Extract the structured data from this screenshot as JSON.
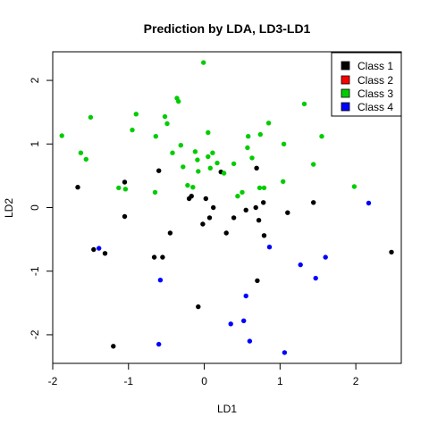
{
  "chart_data": {
    "type": "scatter",
    "title": "Prediction by LDA, LD3-LD1",
    "xlabel": "LD1",
    "ylabel": "LD2",
    "xlim": [
      -2.0,
      2.6
    ],
    "ylim": [
      -2.45,
      2.45
    ],
    "xticks": [
      -2,
      -1,
      0,
      1,
      2
    ],
    "yticks": [
      -2,
      -1,
      0,
      1,
      2
    ],
    "xtick_labels": [
      "-2",
      "-1",
      "0",
      "1",
      "2"
    ],
    "ytick_labels": [
      "-2",
      "-1",
      "0",
      "1",
      "2"
    ],
    "grid": false,
    "legend_position": "top-right",
    "series": [
      {
        "name": "Class 1",
        "color": "#000000",
        "points": [
          [
            -1.67,
            0.32
          ],
          [
            -1.05,
            0.4
          ],
          [
            -1.05,
            -0.14
          ],
          [
            -1.46,
            -0.66
          ],
          [
            -1.31,
            -0.72
          ],
          [
            -0.6,
            0.58
          ],
          [
            -0.45,
            -0.4
          ],
          [
            -0.55,
            -0.78
          ],
          [
            -0.66,
            -0.78
          ],
          [
            -0.2,
            0.14
          ],
          [
            -0.17,
            0.18
          ],
          [
            0.02,
            0.14
          ],
          [
            0.12,
            0.0
          ],
          [
            0.07,
            -0.16
          ],
          [
            -0.02,
            -0.26
          ],
          [
            0.22,
            0.56
          ],
          [
            0.29,
            -0.4
          ],
          [
            0.39,
            -0.16
          ],
          [
            0.55,
            -0.04
          ],
          [
            0.69,
            0.62
          ],
          [
            0.68,
            0.0
          ],
          [
            0.72,
            -0.2
          ],
          [
            0.78,
            0.08
          ],
          [
            0.79,
            -0.44
          ],
          [
            0.7,
            -1.15
          ],
          [
            -0.08,
            -1.56
          ],
          [
            1.1,
            -0.08
          ],
          [
            1.44,
            0.08
          ],
          [
            2.47,
            -0.7
          ],
          [
            -1.2,
            -2.18
          ]
        ]
      },
      {
        "name": "Class 2",
        "color": "#ff0000",
        "points": []
      },
      {
        "name": "Class 3",
        "color": "#00cd00",
        "points": [
          [
            -1.88,
            1.13
          ],
          [
            -1.5,
            1.42
          ],
          [
            -1.63,
            0.86
          ],
          [
            -1.56,
            0.76
          ],
          [
            -1.13,
            0.31
          ],
          [
            -1.04,
            0.29
          ],
          [
            -0.95,
            1.22
          ],
          [
            -0.9,
            1.47
          ],
          [
            -0.52,
            1.43
          ],
          [
            -0.49,
            1.32
          ],
          [
            -0.64,
            1.12
          ],
          [
            -0.42,
            0.86
          ],
          [
            -0.36,
            1.72
          ],
          [
            -0.34,
            1.67
          ],
          [
            -0.31,
            0.98
          ],
          [
            -0.28,
            0.64
          ],
          [
            -0.22,
            0.35
          ],
          [
            -0.15,
            0.32
          ],
          [
            -0.12,
            0.88
          ],
          [
            -0.08,
            0.57
          ],
          [
            -0.09,
            0.75
          ],
          [
            -0.01,
            2.28
          ],
          [
            0.05,
            1.18
          ],
          [
            0.05,
            0.8
          ],
          [
            0.08,
            0.62
          ],
          [
            0.11,
            0.86
          ],
          [
            0.17,
            0.7
          ],
          [
            0.26,
            0.54
          ],
          [
            0.39,
            0.69
          ],
          [
            0.44,
            0.18
          ],
          [
            0.5,
            0.24
          ],
          [
            0.57,
            0.94
          ],
          [
            0.58,
            1.12
          ],
          [
            0.63,
            0.78
          ],
          [
            0.73,
            0.31
          ],
          [
            0.74,
            1.15
          ],
          [
            0.79,
            0.31
          ],
          [
            0.85,
            1.33
          ],
          [
            1.05,
            1.0
          ],
          [
            1.04,
            0.41
          ],
          [
            1.32,
            1.63
          ],
          [
            1.44,
            0.68
          ],
          [
            1.55,
            1.12
          ],
          [
            1.98,
            0.33
          ],
          [
            -0.65,
            0.24
          ]
        ]
      },
      {
        "name": "Class 4",
        "color": "#0000ff",
        "points": [
          [
            -1.39,
            -0.64
          ],
          [
            -0.58,
            -1.14
          ],
          [
            -0.6,
            -2.15
          ],
          [
            0.35,
            -1.83
          ],
          [
            0.52,
            -1.78
          ],
          [
            0.55,
            -1.39
          ],
          [
            0.6,
            -2.1
          ],
          [
            0.86,
            -0.62
          ],
          [
            1.06,
            -2.28
          ],
          [
            1.27,
            -0.9
          ],
          [
            1.47,
            -1.11
          ],
          [
            1.6,
            -0.78
          ],
          [
            2.17,
            0.07
          ]
        ]
      }
    ]
  }
}
